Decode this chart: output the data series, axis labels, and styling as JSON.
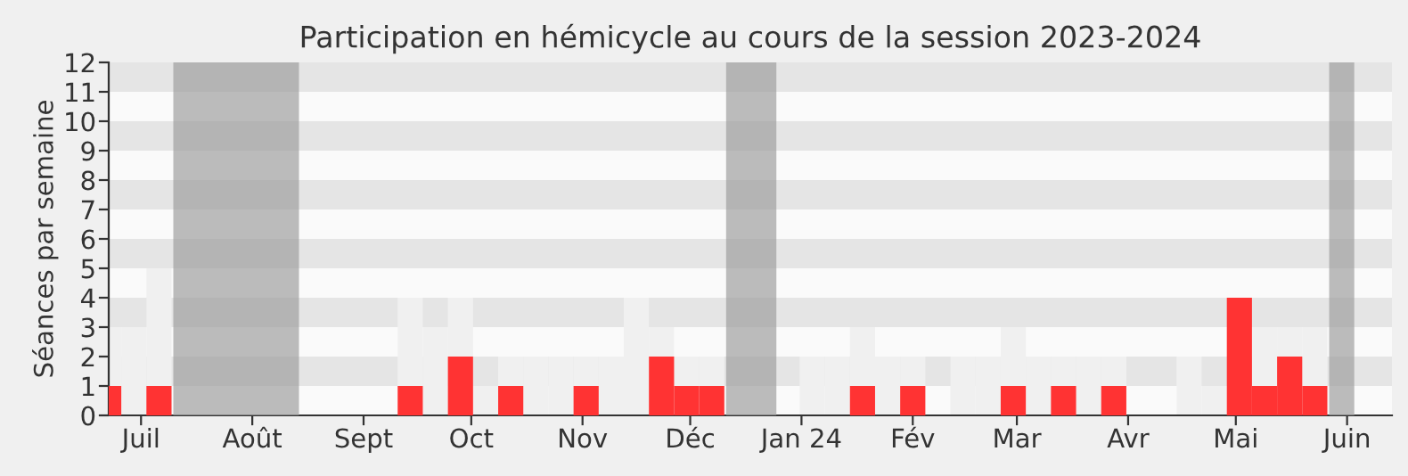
{
  "chart_data": {
    "type": "bar",
    "title": "Participation en hémicycle au cours de la session 2023-2024",
    "ylabel": "Séances par semaine",
    "x": [
      "2023-06-22",
      "2023-06-29",
      "2023-07-06",
      "2023-07-13",
      "2023-07-20",
      "2023-07-27",
      "2023-08-03",
      "2023-08-10",
      "2023-08-17",
      "2023-08-24",
      "2023-08-31",
      "2023-09-07",
      "2023-09-14",
      "2023-09-21",
      "2023-09-28",
      "2023-10-05",
      "2023-10-12",
      "2023-10-19",
      "2023-10-26",
      "2023-11-02",
      "2023-11-09",
      "2023-11-16",
      "2023-11-23",
      "2023-11-30",
      "2023-12-07",
      "2023-12-14",
      "2023-12-21",
      "2023-12-28",
      "2024-01-04",
      "2024-01-11",
      "2024-01-18",
      "2024-01-25",
      "2024-02-01",
      "2024-02-08",
      "2024-02-15",
      "2024-02-22",
      "2024-02-29",
      "2024-03-07",
      "2024-03-14",
      "2024-03-21",
      "2024-03-28",
      "2024-04-04",
      "2024-04-11",
      "2024-04-18",
      "2024-04-25",
      "2024-05-02",
      "2024-05-09",
      "2024-05-16",
      "2024-05-23",
      "2024-05-30",
      "2024-06-06",
      "2024-06-13"
    ],
    "series": [
      {
        "color": "#f0f0f0",
        "values": [
          3,
          3,
          5,
          null,
          null,
          null,
          null,
          null,
          0,
          0,
          0,
          0,
          4,
          3,
          4,
          1,
          2,
          2,
          2,
          2,
          2,
          4,
          3,
          2,
          2,
          null,
          null,
          0,
          2,
          2,
          3,
          2,
          2,
          0,
          2,
          2,
          3,
          2,
          2,
          2,
          2,
          0,
          0,
          2,
          1,
          null,
          3,
          3,
          3,
          null,
          0,
          0
        ]
      },
      {
        "color": "#ff3333",
        "values": [
          1,
          0,
          1,
          null,
          null,
          null,
          null,
          null,
          0,
          0,
          0,
          0,
          1,
          0,
          2,
          0,
          1,
          0,
          0,
          1,
          0,
          0,
          2,
          1,
          1,
          null,
          null,
          0,
          0,
          0,
          1,
          0,
          1,
          0,
          0,
          0,
          1,
          0,
          1,
          0,
          1,
          0,
          0,
          0,
          0,
          4,
          1,
          2,
          1,
          null,
          0,
          0
        ]
      }
    ],
    "bands": [
      {
        "axis": "x",
        "from": "2023-07-10",
        "to": "2023-08-14",
        "color": "#a0a0a0"
      },
      {
        "axis": "x",
        "from": "2023-12-11",
        "to": "2023-12-25",
        "color": "#a0a0a0"
      },
      {
        "axis": "x",
        "from": "2024-05-27",
        "to": "2024-06-03",
        "color": "#a0a0a0"
      }
    ],
    "xlim": [
      "2023-06-22",
      "2024-06-13T12:00"
    ],
    "ylim": [
      0,
      12
    ],
    "yticks": [
      0,
      1,
      2,
      3,
      4,
      5,
      6,
      7,
      8,
      9,
      10,
      11,
      12
    ],
    "xticks": [
      {
        "value": "2023-07-01",
        "label": "Juil"
      },
      {
        "value": "2023-08-01",
        "label": "Août"
      },
      {
        "value": "2023-09-01",
        "label": "Sept"
      },
      {
        "value": "2023-10-01",
        "label": "Oct"
      },
      {
        "value": "2023-11-01",
        "label": "Nov"
      },
      {
        "value": "2023-12-01",
        "label": "Déc"
      },
      {
        "value": "2024-01-01",
        "label": "Jan 24"
      },
      {
        "value": "2024-02-01",
        "label": "Fév"
      },
      {
        "value": "2024-03-01",
        "label": "Mar"
      },
      {
        "value": "2024-04-01",
        "label": "Avr"
      },
      {
        "value": "2024-05-01",
        "label": "Mai"
      },
      {
        "value": "2024-06-01",
        "label": "Juin"
      }
    ],
    "legend": false
  }
}
